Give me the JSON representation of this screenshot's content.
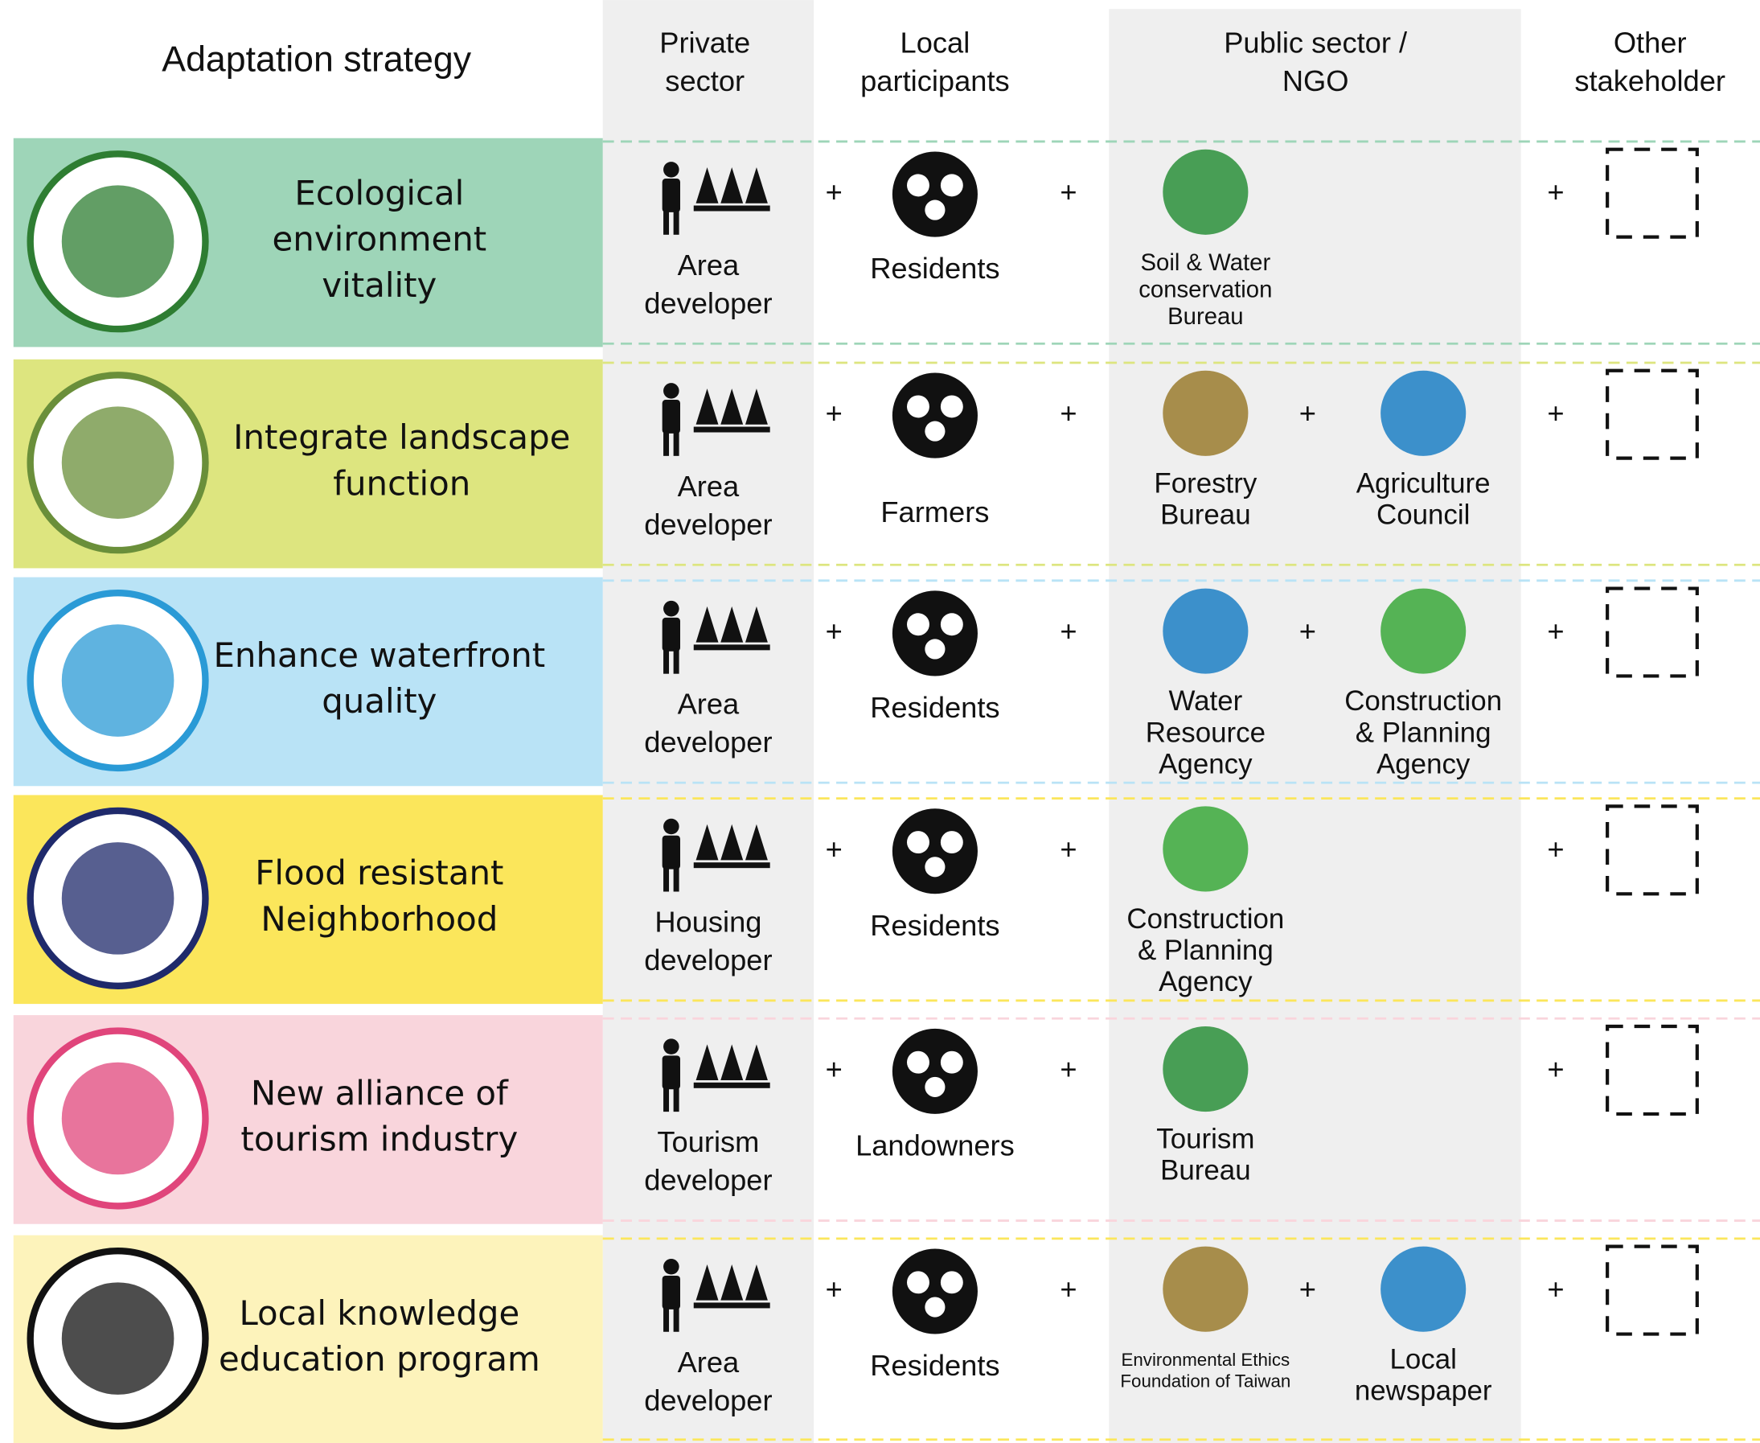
{
  "header": {
    "columns": [
      [
        "Adaptation strategy"
      ],
      [
        "Private",
        "sector"
      ],
      [
        "Local",
        "participants"
      ],
      [
        "Public sector /",
        "NGO"
      ],
      [
        "Other",
        "stakeholder"
      ]
    ]
  },
  "rows": [
    {
      "strategy": [
        "Ecological",
        "environment",
        "vitality"
      ],
      "private": [
        "Area",
        "developer"
      ],
      "local": [
        "Residents"
      ],
      "public": [
        [
          "Soil & Water",
          "conservation",
          "Bureau"
        ]
      ]
    },
    {
      "strategy": [
        "Integrate landscape",
        "function"
      ],
      "private": [
        "Area",
        "developer"
      ],
      "local": [
        "Farmers"
      ],
      "public": [
        [
          "Forestry",
          "Bureau"
        ],
        [
          "Agriculture",
          "Council"
        ]
      ]
    },
    {
      "strategy": [
        "Enhance waterfront",
        "quality"
      ],
      "private": [
        "Area",
        "developer"
      ],
      "local": [
        "Residents"
      ],
      "public": [
        [
          "Water",
          "Resource",
          "Agency"
        ],
        [
          "Construction",
          "& Planning",
          "Agency"
        ]
      ]
    },
    {
      "strategy": [
        "Flood resistant",
        "Neighborhood"
      ],
      "private": [
        "Housing",
        "developer"
      ],
      "local": [
        "Residents"
      ],
      "public": [
        [
          "Construction",
          "& Planning",
          "Agency"
        ]
      ]
    },
    {
      "strategy": [
        "New alliance of",
        "tourism industry"
      ],
      "private": [
        "Tourism",
        "developer"
      ],
      "local": [
        "Landowners"
      ],
      "public": [
        [
          "Tourism",
          "Bureau"
        ]
      ]
    },
    {
      "strategy": [
        "Local knowledge",
        "education program"
      ],
      "private": [
        "Area",
        "developer"
      ],
      "local": [
        "Residents"
      ],
      "public": [
        [
          "Environmental Ethics",
          "Foundation of Taiwan"
        ],
        [
          "Local",
          "newspaper"
        ]
      ]
    }
  ]
}
